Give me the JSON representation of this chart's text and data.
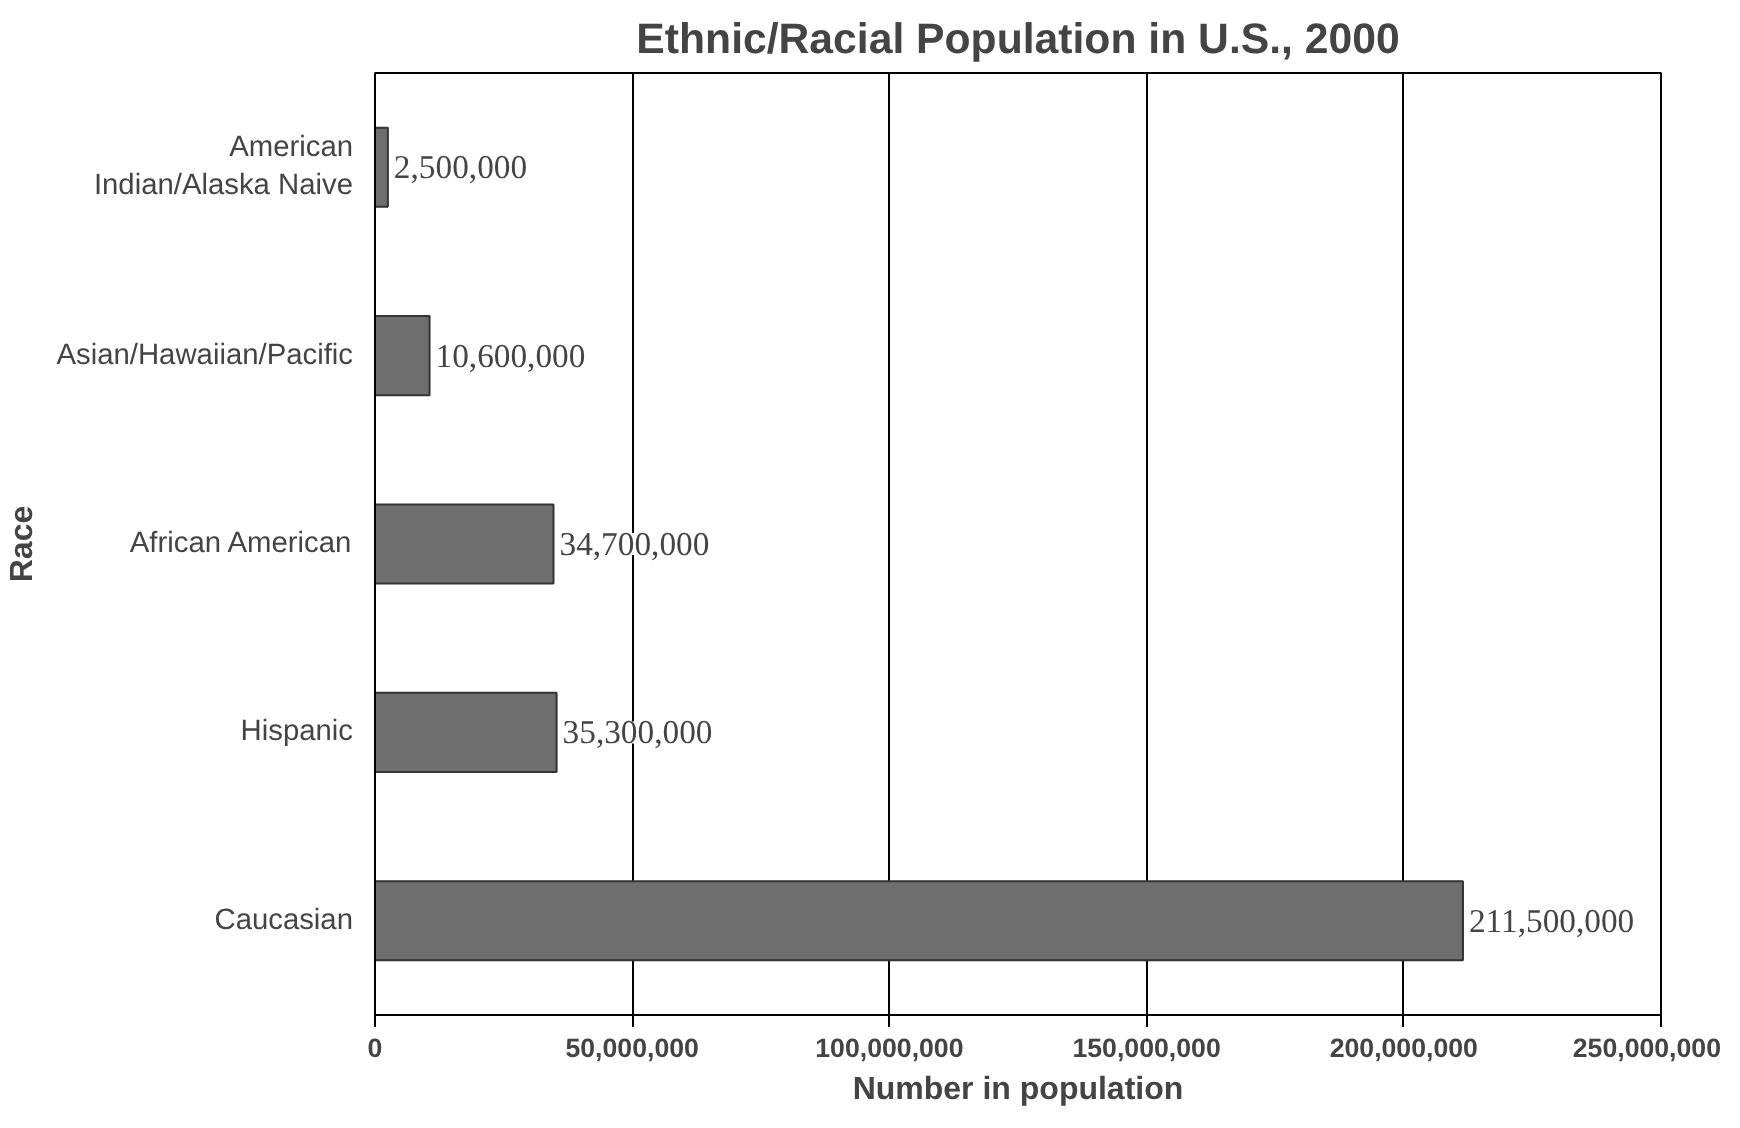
{
  "chart_data": {
    "type": "bar",
    "orientation": "horizontal",
    "title": "Ethnic/Racial Population in U.S., 2000",
    "xlabel": "Number in population",
    "ylabel": "Race",
    "categories": [
      "American Indian/Alaska Naive",
      "Asian/Hawaiian/Pacific",
      "African American",
      "Hispanic",
      "Caucasian"
    ],
    "values": [
      2500000,
      10600000,
      34700000,
      35300000,
      211500000
    ],
    "value_labels": [
      "2,500,000",
      "10,600,000",
      "34,700,000",
      "35,300,000",
      "211,500,000"
    ],
    "color": "#6e6e6e",
    "xlim": [
      0,
      250000000
    ],
    "xticks": [
      0,
      {
        "value": 50000000,
        "label": "50,000,000"
      },
      {
        "value": 100000000,
        "label": "100,000,000"
      },
      {
        "value": 150000000,
        "label": "150,000,000"
      },
      {
        "value": 200000000,
        "label": "200,000,000"
      },
      {
        "value": 250000000,
        "label": "250,000,000"
      }
    ],
    "grid": "x"
  }
}
